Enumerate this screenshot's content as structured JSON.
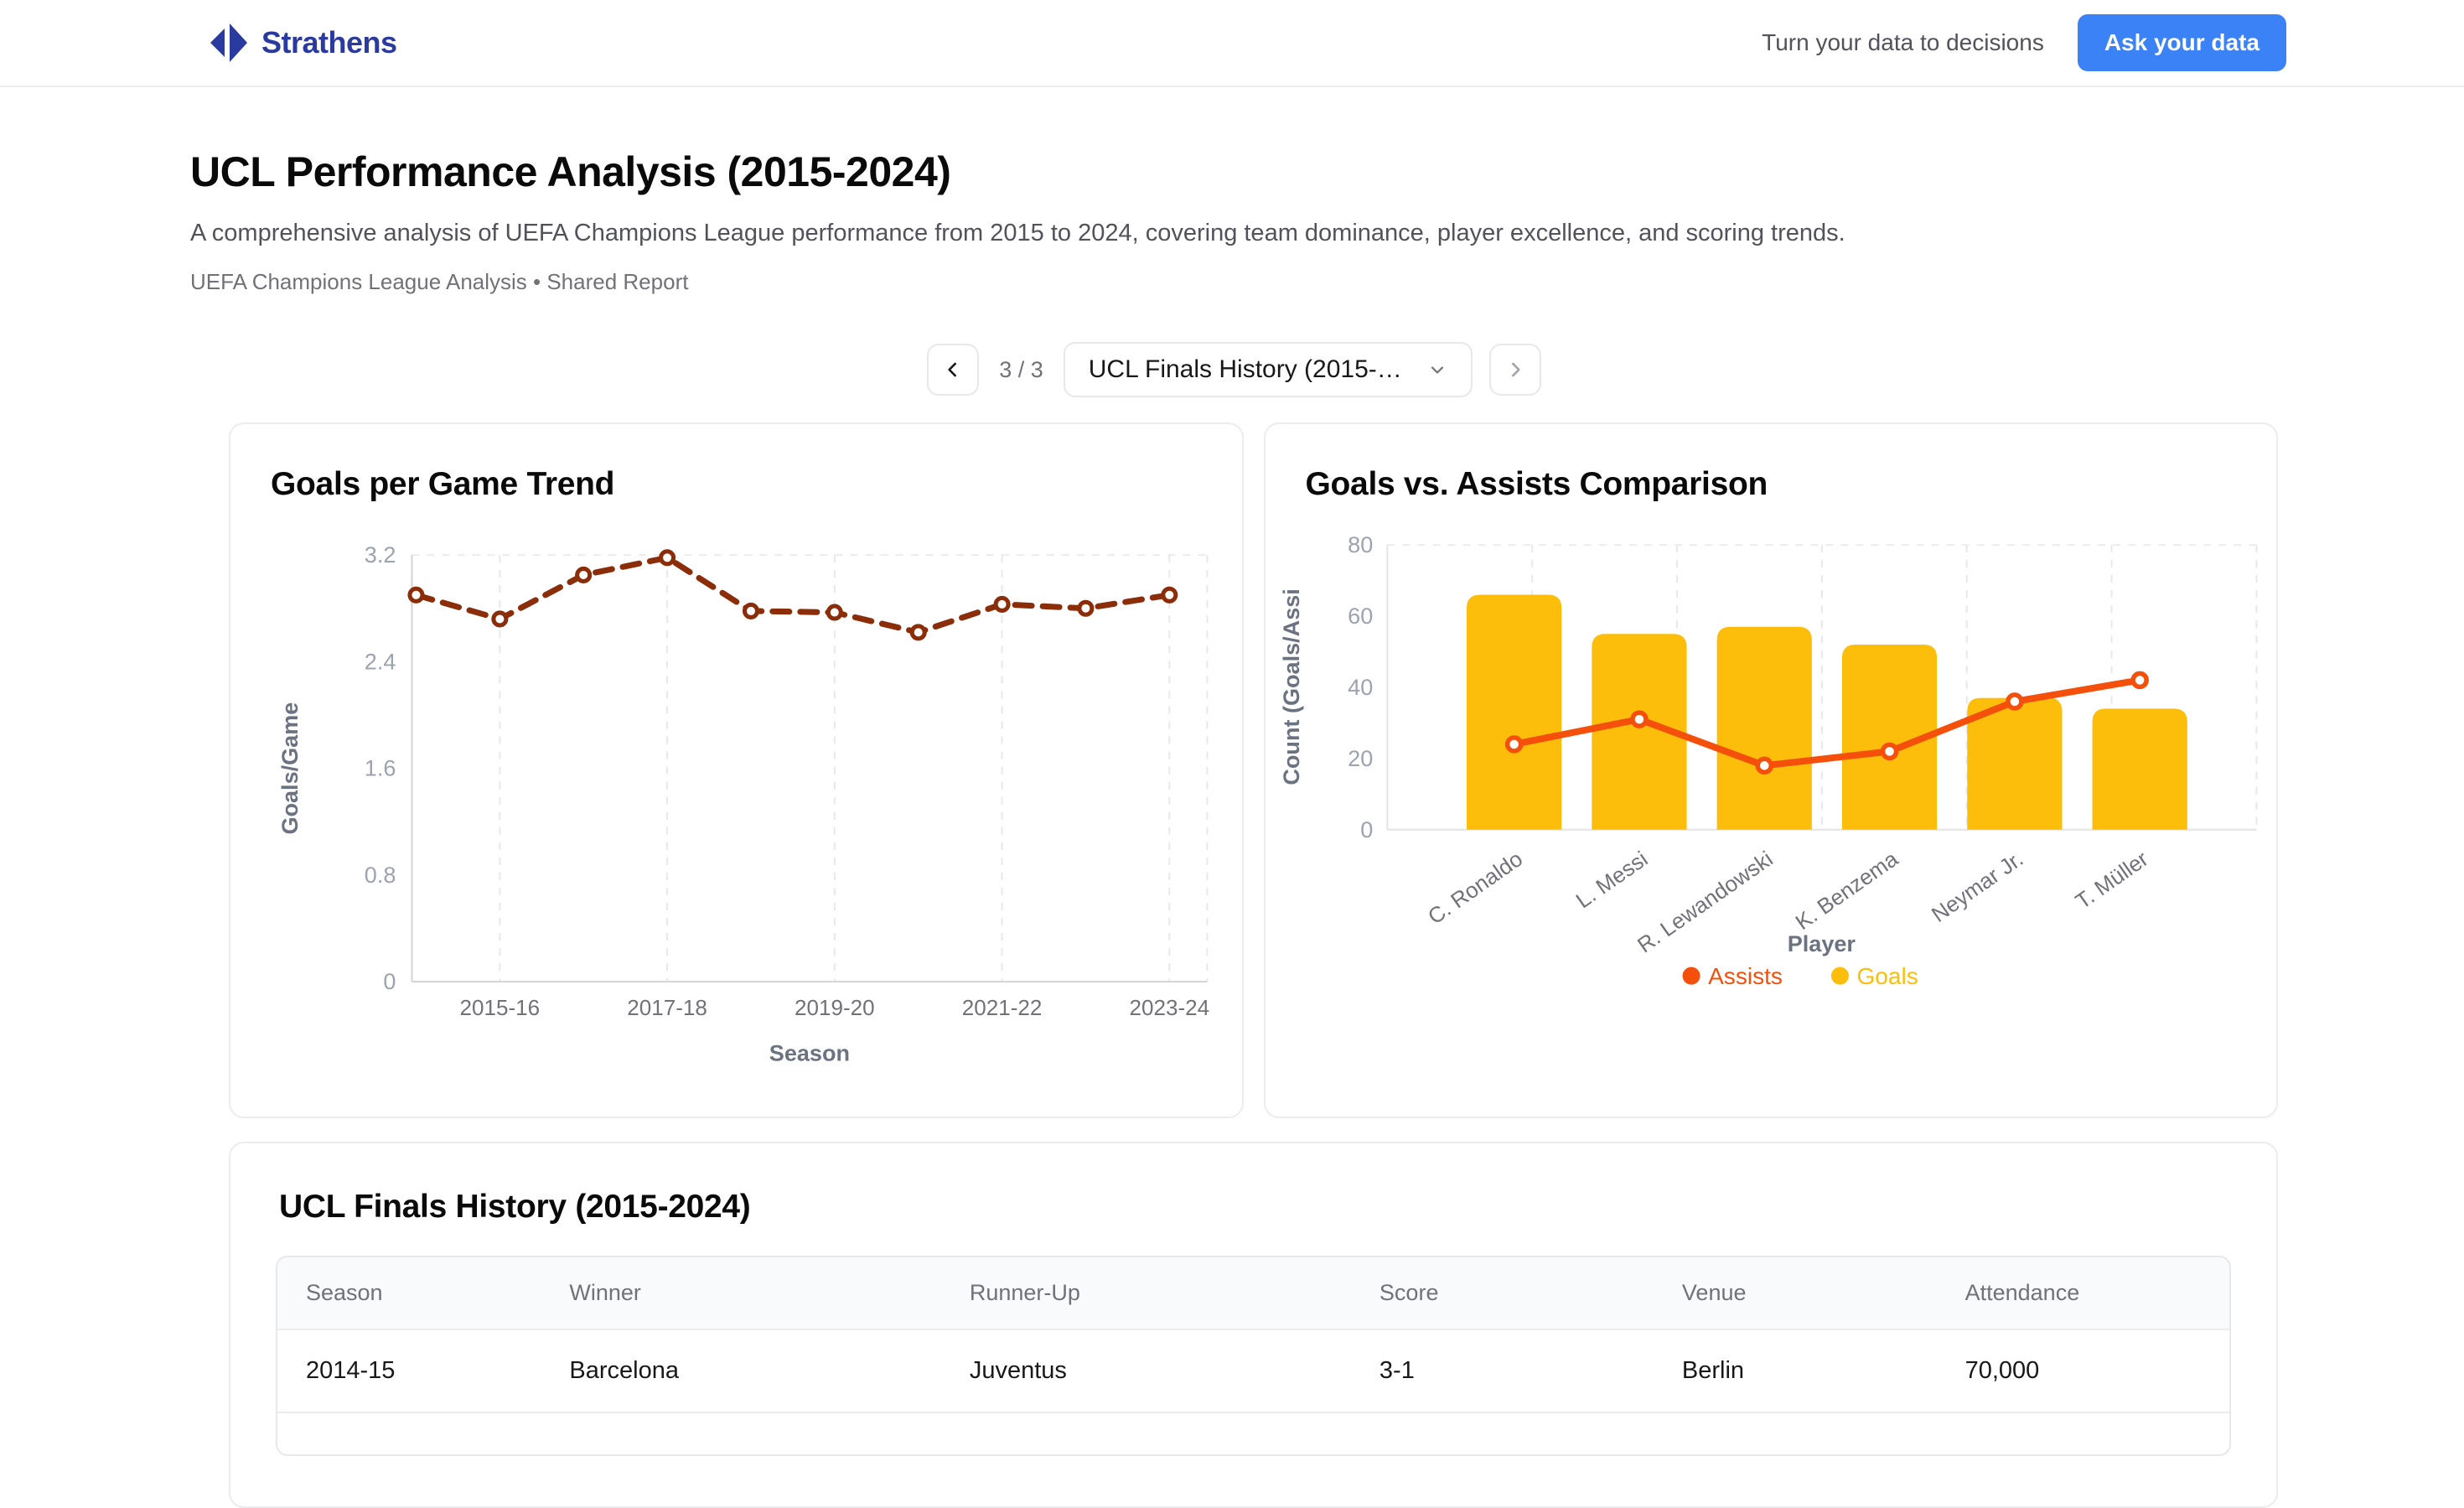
{
  "header": {
    "brand": "Strathens",
    "tagline": "Turn your data to decisions",
    "cta": "Ask your data"
  },
  "page": {
    "title": "UCL Performance Analysis (2015-2024)",
    "subtitle": "A comprehensive analysis of UEFA Champions League performance from 2015 to 2024, covering team dominance, player excellence, and scoring trends.",
    "meta": "UEFA Champions League Analysis • Shared Report"
  },
  "pager": {
    "count": "3 / 3",
    "selected": "UCL Finals History (2015-…",
    "prev_enabled": true,
    "next_enabled": false
  },
  "icons": {
    "logo": "split-diamond",
    "pager_prev": "chevron-left",
    "pager_next": "chevron-right",
    "dropdown": "chevron-down"
  },
  "colors": {
    "brand_blue": "#2b3a9e",
    "cta_blue": "#3b82f6",
    "trend_line": "#8b2d08",
    "goals_bar": "#fcbe0b",
    "assists_line": "#f4500c",
    "grid": "#e8e8ec",
    "tick_text": "#9ca3af",
    "axis_name_text": "#6b7280"
  },
  "chart_data": [
    {
      "type": "line",
      "title": "Goals per Game Trend",
      "xlabel": "Season",
      "ylabel": "Goals/Game",
      "x": [
        "2014-15",
        "2015-16",
        "2016-17",
        "2017-18",
        "2018-19",
        "2019-20",
        "2020-21",
        "2021-22",
        "2022-23",
        "2023-24"
      ],
      "values": [
        2.9,
        2.72,
        3.05,
        3.18,
        2.78,
        2.77,
        2.62,
        2.83,
        2.8,
        2.9
      ],
      "xticks": [
        "2015-16",
        "2017-18",
        "2019-20",
        "2021-22",
        "2023-24"
      ],
      "yticks": [
        0,
        0.8,
        1.6,
        2.4,
        3.2
      ],
      "ylim": [
        0,
        3.2
      ],
      "line_style": "dashed",
      "color": "#8b2d08",
      "grid": "vertical-dashed"
    },
    {
      "type": "bar",
      "title": "Goals vs. Assists Comparison",
      "xlabel": "Player",
      "ylabel": "Count (Goals/Assi",
      "categories": [
        "C. Ronaldo",
        "L. Messi",
        "R. Lewandowski",
        "K. Benzema",
        "Neymar Jr.",
        "T. Müller"
      ],
      "series": [
        {
          "name": "Goals",
          "type": "bar",
          "color": "#fcbe0b",
          "values": [
            66,
            55,
            57,
            52,
            37,
            34
          ]
        },
        {
          "name": "Assists",
          "type": "line",
          "color": "#f4500c",
          "values": [
            24,
            31,
            18,
            22,
            36,
            42
          ]
        }
      ],
      "legend": [
        "Assists",
        "Goals"
      ],
      "legend_position": "bottom",
      "yticks": [
        0,
        20,
        40,
        60,
        80
      ],
      "ylim": [
        0,
        80
      ],
      "grid": "vertical-dashed"
    }
  ],
  "table": {
    "title": "UCL Finals History (2015-2024)",
    "columns": [
      "Season",
      "Winner",
      "Runner-Up",
      "Score",
      "Venue",
      "Attendance"
    ],
    "rows": [
      [
        "2014-15",
        "Barcelona",
        "Juventus",
        "3-1",
        "Berlin",
        "70,000"
      ]
    ]
  }
}
